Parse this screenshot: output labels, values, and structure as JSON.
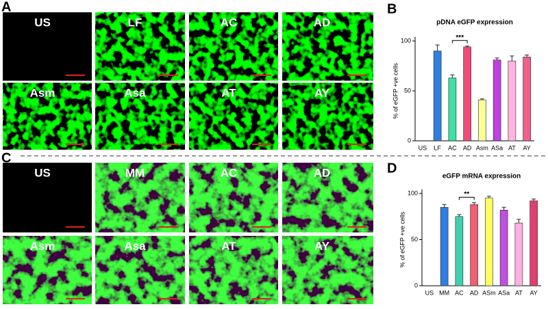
{
  "panel_letters": [
    "A",
    "B",
    "C",
    "D"
  ],
  "image_panels": [
    {
      "labels": [
        "US",
        "LF",
        "AC",
        "AD",
        "Asm",
        "Asa",
        "AT",
        "AY"
      ]
    },
    {
      "labels": [
        "US",
        "MM",
        "AC",
        "AD",
        "Asm",
        "Asa",
        "AT",
        "AY"
      ]
    }
  ],
  "chart_data": [
    {
      "type": "bar",
      "title": "pDNA eGFP expression",
      "y_label": "% of eGFP +ve cells",
      "categories": [
        "US",
        "LF",
        "AC",
        "AD",
        "Asm",
        "ASa",
        "AT",
        "AY"
      ],
      "values": [
        0,
        90,
        63,
        94,
        41,
        81,
        80,
        84
      ],
      "errors": [
        0,
        6,
        3,
        1,
        1,
        2,
        5,
        2
      ],
      "colors": [
        "#888888",
        "#2f7fe0",
        "#3fe0a8",
        "#f04a78",
        "#ffff99",
        "#c040e0",
        "#ffb4e4",
        "#f0608a"
      ],
      "ylim": [
        0,
        100
      ],
      "yticks": [
        0,
        50,
        100
      ],
      "annotation": "***"
    },
    {
      "type": "bar",
      "title": "eGFP mRNA expression",
      "y_label": "% of eGFP +ve cells",
      "categories": [
        "US",
        "MM",
        "AC",
        "AD",
        "ASm",
        "ASa",
        "AT",
        "AY"
      ],
      "values": [
        0,
        85,
        75,
        88,
        95,
        82,
        68,
        92
      ],
      "errors": [
        0,
        3,
        2,
        2,
        2,
        3,
        4,
        2
      ],
      "colors": [
        "#888888",
        "#2f7fe0",
        "#40d0b0",
        "#f06070",
        "#ffff60",
        "#c050e0",
        "#ffb0e0",
        "#e04070"
      ],
      "ylim": [
        0,
        100
      ],
      "yticks": [
        0,
        50,
        100
      ],
      "annotation": "**"
    }
  ]
}
